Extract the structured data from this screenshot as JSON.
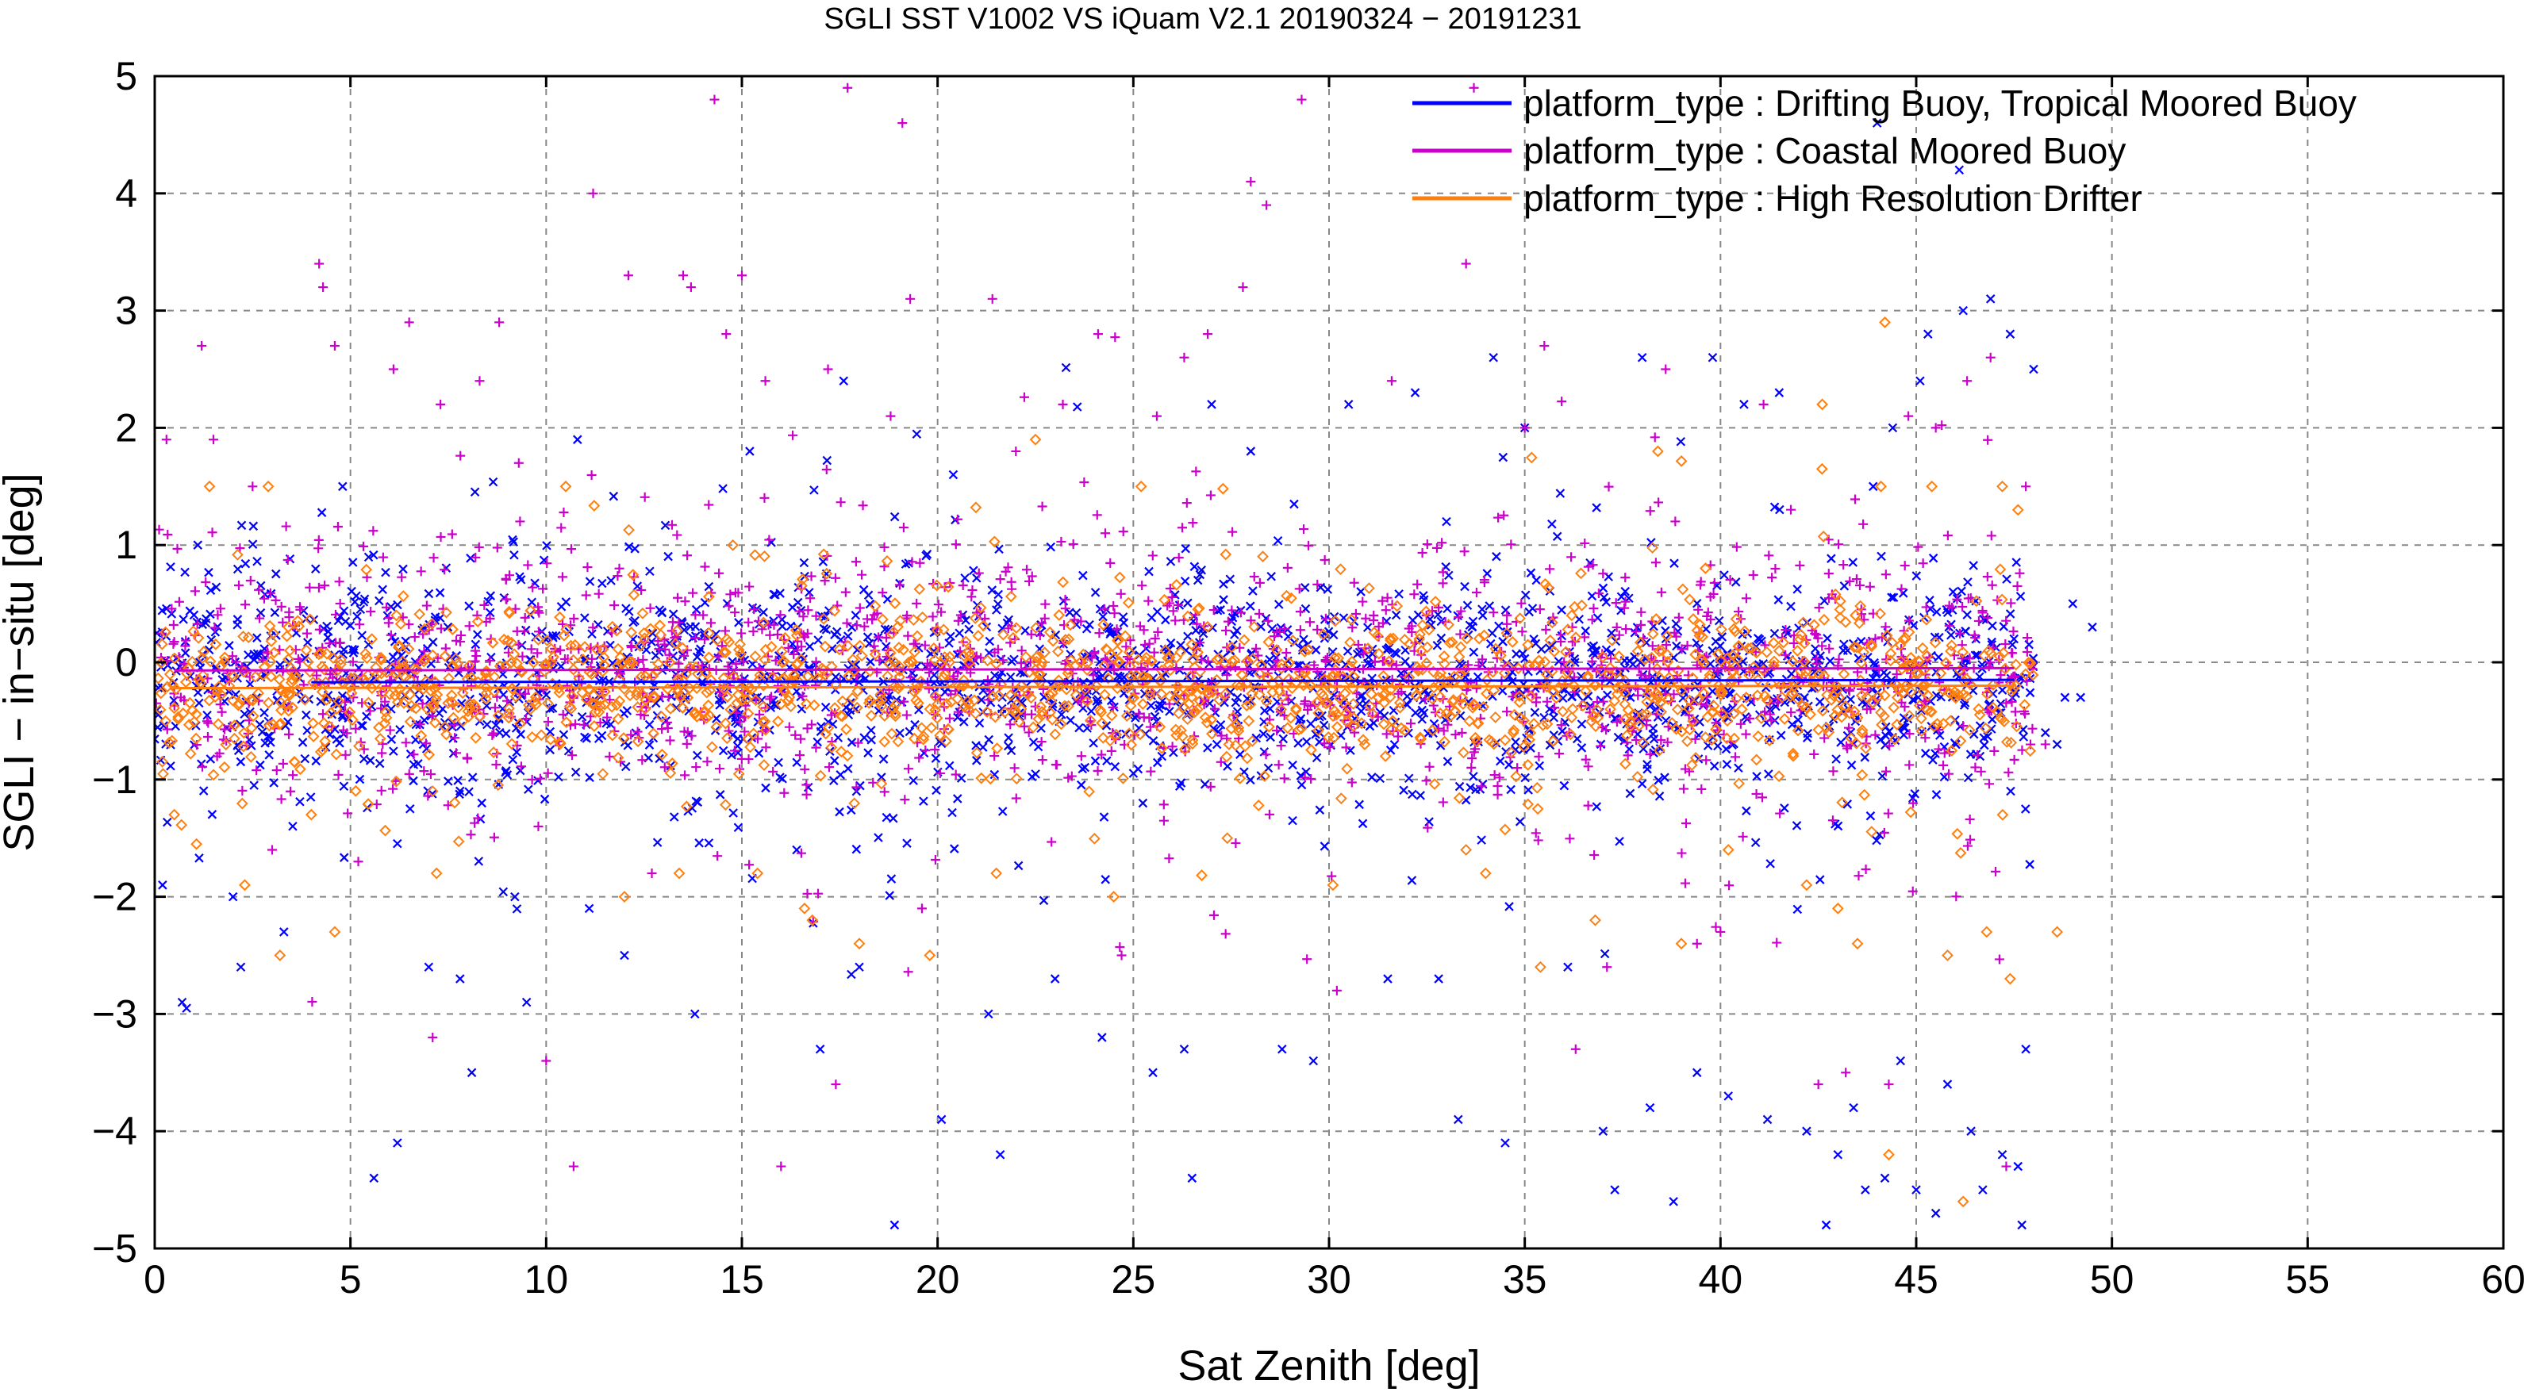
{
  "chart_data": {
    "type": "scatter",
    "title": "SGLI SST V1002 VS iQuam V2.1 20190324 − 20191231",
    "xlabel": "Sat Zenith [deg]",
    "ylabel": "SGLI − in−situ [deg]",
    "xlim": [
      0,
      60
    ],
    "ylim": [
      -5,
      5
    ],
    "x_ticks": [
      "0",
      "5",
      "10",
      "15",
      "20",
      "25",
      "30",
      "35",
      "40",
      "45",
      "50",
      "55",
      "60"
    ],
    "y_ticks": [
      "−5",
      "−4",
      "−3",
      "−2",
      "−1",
      "0",
      "1",
      "2",
      "3",
      "4",
      "5"
    ],
    "grid": true,
    "legend_position": "top-right",
    "series": [
      {
        "name": "platform_type : Drifting Buoy, Tropical Moored Buoy",
        "color": "#0000ff",
        "marker": "x",
        "x_range": [
          0,
          49.5
        ],
        "core_mean": -0.15,
        "core_std": 0.45,
        "points": [
          [
            0.2,
            -1.9
          ],
          [
            0.7,
            -2.9
          ],
          [
            1.1,
            1.0
          ],
          [
            2.0,
            -2.0
          ],
          [
            2.2,
            -2.6
          ],
          [
            3.3,
            -2.3
          ],
          [
            4.8,
            1.5
          ],
          [
            5.6,
            -4.4
          ],
          [
            6.2,
            -4.1
          ],
          [
            7.0,
            -2.6
          ],
          [
            7.8,
            -2.7
          ],
          [
            8.1,
            -3.5
          ],
          [
            9.2,
            -2.0
          ],
          [
            9.5,
            -2.9
          ],
          [
            10.8,
            1.9
          ],
          [
            11.1,
            -2.1
          ],
          [
            12.0,
            -2.5
          ],
          [
            13.8,
            -3.0
          ],
          [
            15.2,
            1.8
          ],
          [
            16.4,
            -1.6
          ],
          [
            17.0,
            -3.3
          ],
          [
            17.6,
            2.4
          ],
          [
            18.0,
            -2.6
          ],
          [
            18.9,
            -4.8
          ],
          [
            20.1,
            -3.9
          ],
          [
            20.4,
            1.6
          ],
          [
            21.3,
            -3.0
          ],
          [
            21.6,
            -4.2
          ],
          [
            23.0,
            -2.7
          ],
          [
            24.2,
            -3.2
          ],
          [
            25.5,
            -3.5
          ],
          [
            26.3,
            -3.3
          ],
          [
            26.5,
            -4.4
          ],
          [
            27.0,
            2.2
          ],
          [
            28.0,
            1.8
          ],
          [
            28.8,
            -3.3
          ],
          [
            29.6,
            -3.4
          ],
          [
            30.5,
            2.2
          ],
          [
            31.5,
            -2.7
          ],
          [
            32.2,
            2.3
          ],
          [
            32.8,
            -2.7
          ],
          [
            33.0,
            1.2
          ],
          [
            33.3,
            -3.9
          ],
          [
            34.2,
            2.6
          ],
          [
            34.5,
            -4.1
          ],
          [
            35.0,
            2.0
          ],
          [
            36.1,
            -2.6
          ],
          [
            37.0,
            -4.0
          ],
          [
            37.3,
            -4.5
          ],
          [
            38.0,
            2.6
          ],
          [
            38.2,
            -3.8
          ],
          [
            38.8,
            -4.6
          ],
          [
            39.4,
            -3.5
          ],
          [
            39.8,
            2.6
          ],
          [
            40.2,
            -3.7
          ],
          [
            40.6,
            2.2
          ],
          [
            41.2,
            -3.9
          ],
          [
            41.5,
            2.3
          ],
          [
            42.2,
            -4.0
          ],
          [
            42.7,
            -4.8
          ],
          [
            43.0,
            -4.2
          ],
          [
            43.4,
            -3.8
          ],
          [
            43.7,
            -4.5
          ],
          [
            44.0,
            4.6
          ],
          [
            44.2,
            -4.4
          ],
          [
            44.6,
            -3.4
          ],
          [
            45.0,
            -4.5
          ],
          [
            45.3,
            2.8
          ],
          [
            45.5,
            -4.7
          ],
          [
            45.8,
            -3.6
          ],
          [
            46.1,
            4.2
          ],
          [
            46.4,
            -4.0
          ],
          [
            46.7,
            -4.5
          ],
          [
            46.9,
            3.1
          ],
          [
            47.2,
            -4.2
          ],
          [
            47.4,
            2.8
          ],
          [
            47.6,
            -4.3
          ],
          [
            47.7,
            -4.8
          ],
          [
            47.8,
            -3.3
          ],
          [
            48.0,
            2.5
          ],
          [
            48.3,
            -0.6
          ],
          [
            48.6,
            -0.7
          ],
          [
            48.8,
            -0.3
          ],
          [
            49.0,
            0.5
          ],
          [
            49.2,
            -0.3
          ],
          [
            49.5,
            0.3
          ],
          [
            46.2,
            3.0
          ],
          [
            45.1,
            2.4
          ],
          [
            44.4,
            2.0
          ],
          [
            43.9,
            1.5
          ]
        ]
      },
      {
        "name": "platform_type : Coastal Moored Buoy",
        "color": "#cc00cc",
        "marker": "+",
        "x_range": [
          0,
          48.3
        ],
        "core_mean": -0.05,
        "core_std": 0.5,
        "points": [
          [
            0.3,
            1.9
          ],
          [
            1.2,
            2.7
          ],
          [
            1.5,
            1.9
          ],
          [
            2.5,
            1.5
          ],
          [
            4.2,
            3.4
          ],
          [
            4.3,
            3.2
          ],
          [
            4.6,
            2.7
          ],
          [
            6.1,
            2.5
          ],
          [
            6.5,
            2.9
          ],
          [
            7.1,
            -3.2
          ],
          [
            7.3,
            2.2
          ],
          [
            8.3,
            2.4
          ],
          [
            8.8,
            2.9
          ],
          [
            9.3,
            1.7
          ],
          [
            10.0,
            -3.4
          ],
          [
            10.7,
            -4.3
          ],
          [
            11.2,
            4.0
          ],
          [
            12.1,
            3.3
          ],
          [
            13.5,
            3.3
          ],
          [
            13.7,
            3.2
          ],
          [
            14.3,
            4.8
          ],
          [
            14.6,
            2.8
          ],
          [
            15.0,
            3.3
          ],
          [
            15.6,
            2.4
          ],
          [
            16.0,
            -4.3
          ],
          [
            17.2,
            2.5
          ],
          [
            17.4,
            -3.6
          ],
          [
            17.7,
            4.9
          ],
          [
            18.8,
            2.1
          ],
          [
            19.1,
            4.6
          ],
          [
            19.3,
            3.1
          ],
          [
            21.4,
            3.1
          ],
          [
            22.0,
            1.8
          ],
          [
            23.2,
            2.2
          ],
          [
            24.1,
            2.8
          ],
          [
            25.6,
            2.1
          ],
          [
            26.3,
            2.6
          ],
          [
            26.9,
            2.8
          ],
          [
            27.8,
            3.2
          ],
          [
            28.0,
            4.1
          ],
          [
            28.4,
            3.9
          ],
          [
            29.3,
            4.8
          ],
          [
            31.6,
            2.4
          ],
          [
            33.5,
            3.4
          ],
          [
            33.7,
            4.9
          ],
          [
            35.0,
            2.0
          ],
          [
            36.3,
            -3.3
          ],
          [
            37.1,
            -2.6
          ],
          [
            38.6,
            2.5
          ],
          [
            39.4,
            -2.4
          ],
          [
            41.1,
            2.2
          ],
          [
            42.5,
            -3.6
          ],
          [
            43.2,
            -3.5
          ],
          [
            44.3,
            -3.6
          ],
          [
            45.5,
            2.0
          ],
          [
            46.3,
            2.4
          ],
          [
            46.9,
            2.6
          ],
          [
            47.3,
            -4.3
          ],
          [
            47.8,
            1.5
          ],
          [
            48.3,
            -0.7
          ],
          [
            3.0,
            -1.6
          ],
          [
            5.2,
            -1.7
          ],
          [
            9.8,
            -1.4
          ],
          [
            12.7,
            -1.8
          ],
          [
            19.6,
            -2.1
          ],
          [
            24.7,
            -2.5
          ],
          [
            30.2,
            -2.8
          ],
          [
            35.5,
            2.7
          ],
          [
            40.0,
            -2.3
          ],
          [
            44.8,
            2.1
          ]
        ]
      },
      {
        "name": "platform_type : High Resolution Drifter",
        "color": "#ff7f0e",
        "marker": "diamond",
        "x_range": [
          0,
          48.6
        ],
        "core_mean": -0.2,
        "core_std": 0.3,
        "points": [
          [
            0.5,
            -1.3
          ],
          [
            1.4,
            1.5
          ],
          [
            2.3,
            -1.9
          ],
          [
            2.9,
            1.5
          ],
          [
            3.2,
            -2.5
          ],
          [
            4.0,
            -1.3
          ],
          [
            4.6,
            -2.3
          ],
          [
            7.1,
            -1.1
          ],
          [
            7.2,
            -1.8
          ],
          [
            10.5,
            1.5
          ],
          [
            12.0,
            -2.0
          ],
          [
            13.4,
            -1.8
          ],
          [
            15.4,
            -1.8
          ],
          [
            16.6,
            -2.1
          ],
          [
            16.8,
            -2.2
          ],
          [
            18.0,
            -2.4
          ],
          [
            19.8,
            -2.5
          ],
          [
            21.5,
            -1.8
          ],
          [
            22.5,
            1.9
          ],
          [
            24.5,
            -2.0
          ],
          [
            25.2,
            1.5
          ],
          [
            27.4,
            -1.5
          ],
          [
            30.1,
            -1.9
          ],
          [
            33.5,
            -1.6
          ],
          [
            34.0,
            -1.8
          ],
          [
            35.4,
            -2.6
          ],
          [
            36.8,
            -2.2
          ],
          [
            38.4,
            1.8
          ],
          [
            39.0,
            -2.4
          ],
          [
            40.2,
            -1.6
          ],
          [
            42.2,
            -1.9
          ],
          [
            42.6,
            2.2
          ],
          [
            43.0,
            -2.1
          ],
          [
            43.5,
            -2.4
          ],
          [
            44.1,
            1.5
          ],
          [
            44.2,
            2.9
          ],
          [
            44.3,
            -4.2
          ],
          [
            45.4,
            1.5
          ],
          [
            45.8,
            -2.5
          ],
          [
            46.2,
            -4.6
          ],
          [
            46.8,
            -2.3
          ],
          [
            47.2,
            1.5
          ],
          [
            47.4,
            -2.7
          ],
          [
            47.6,
            1.3
          ],
          [
            48.6,
            -2.3
          ]
        ]
      }
    ]
  }
}
